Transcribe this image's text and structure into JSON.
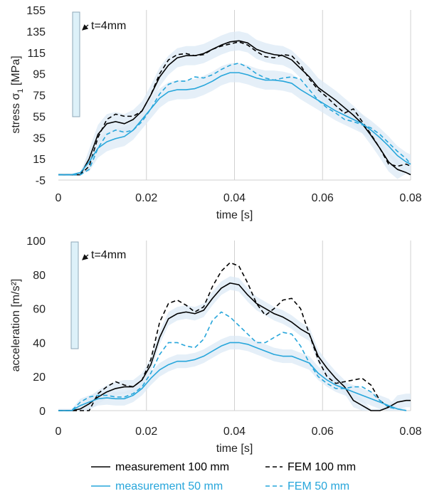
{
  "chart_data": [
    {
      "type": "line",
      "xlabel": "time [s]",
      "ylabel": "stress σ1 [MPa]",
      "ylabel_main": "stress σ",
      "ylabel_sub": "1",
      "ylabel_unit": " [MPa]",
      "xlim": [
        0,
        0.08
      ],
      "ylim": [
        -5,
        155
      ],
      "x_ticks": [
        "0",
        "0.02",
        "0.04",
        "0.06",
        "0.08"
      ],
      "y_ticks": [
        "-5",
        "15",
        "35",
        "55",
        "75",
        "95",
        "115",
        "135",
        "155"
      ],
      "grid": "vertical",
      "annotation": "t=4mm",
      "series": [
        {
          "name": "measurement 100 mm",
          "color": "#000000",
          "dash": "solid",
          "x": [
            0,
            0.005,
            0.007,
            0.009,
            0.011,
            0.013,
            0.015,
            0.017,
            0.019,
            0.021,
            0.023,
            0.025,
            0.027,
            0.029,
            0.031,
            0.033,
            0.035,
            0.037,
            0.039,
            0.041,
            0.043,
            0.045,
            0.047,
            0.049,
            0.051,
            0.053,
            0.055,
            0.057,
            0.059,
            0.061,
            0.063,
            0.065,
            0.067,
            0.069,
            0.071,
            0.073,
            0.075,
            0.077,
            0.079,
            0.08
          ],
          "y": [
            0,
            0,
            15,
            38,
            48,
            50,
            48,
            52,
            60,
            75,
            92,
            103,
            110,
            112,
            112,
            114,
            118,
            122,
            125,
            126,
            124,
            118,
            115,
            113,
            112,
            108,
            100,
            92,
            82,
            76,
            70,
            63,
            56,
            48,
            37,
            25,
            12,
            5,
            2,
            0
          ]
        },
        {
          "name": "FEM 100 mm",
          "color": "#000000",
          "dash": "dashed",
          "x": [
            0,
            0.005,
            0.007,
            0.009,
            0.011,
            0.013,
            0.015,
            0.017,
            0.019,
            0.021,
            0.023,
            0.025,
            0.027,
            0.029,
            0.031,
            0.033,
            0.035,
            0.037,
            0.039,
            0.041,
            0.043,
            0.045,
            0.047,
            0.049,
            0.051,
            0.053,
            0.055,
            0.057,
            0.059,
            0.061,
            0.063,
            0.065,
            0.067,
            0.069,
            0.071,
            0.073,
            0.075,
            0.077,
            0.079,
            0.08
          ],
          "y": [
            0,
            0,
            8,
            35,
            52,
            57,
            55,
            55,
            60,
            75,
            95,
            108,
            113,
            114,
            112,
            113,
            118,
            121,
            123,
            125,
            122,
            116,
            111,
            110,
            113,
            112,
            103,
            90,
            80,
            73,
            65,
            58,
            62,
            50,
            38,
            25,
            10,
            8,
            10,
            8
          ]
        },
        {
          "name": "measurement 50 mm",
          "color": "#27A6DB",
          "dash": "solid",
          "x": [
            0,
            0.003,
            0.005,
            0.007,
            0.009,
            0.011,
            0.013,
            0.015,
            0.017,
            0.019,
            0.021,
            0.023,
            0.025,
            0.027,
            0.029,
            0.031,
            0.033,
            0.035,
            0.037,
            0.039,
            0.041,
            0.043,
            0.045,
            0.047,
            0.049,
            0.051,
            0.053,
            0.055,
            0.057,
            0.059,
            0.061,
            0.063,
            0.065,
            0.067,
            0.069,
            0.071,
            0.073,
            0.075,
            0.077,
            0.079,
            0.08
          ],
          "y": [
            0,
            0,
            2,
            12,
            25,
            31,
            34,
            36,
            42,
            52,
            62,
            72,
            78,
            80,
            80,
            81,
            84,
            88,
            93,
            96,
            96,
            94,
            91,
            89,
            89,
            88,
            86,
            80,
            75,
            70,
            65,
            60,
            56,
            52,
            48,
            42,
            35,
            27,
            18,
            12,
            10
          ]
        },
        {
          "name": "FEM 50 mm",
          "color": "#27A6DB",
          "dash": "dashed",
          "x": [
            0,
            0.005,
            0.007,
            0.009,
            0.011,
            0.013,
            0.015,
            0.017,
            0.019,
            0.021,
            0.023,
            0.025,
            0.027,
            0.029,
            0.031,
            0.033,
            0.035,
            0.037,
            0.039,
            0.041,
            0.043,
            0.045,
            0.047,
            0.049,
            0.051,
            0.053,
            0.055,
            0.057,
            0.059,
            0.061,
            0.063,
            0.065,
            0.067,
            0.069,
            0.071,
            0.073,
            0.075,
            0.077,
            0.079,
            0.08
          ],
          "y": [
            0,
            0,
            5,
            25,
            38,
            42,
            40,
            42,
            50,
            62,
            76,
            85,
            88,
            88,
            92,
            91,
            94,
            99,
            103,
            105,
            101,
            95,
            91,
            89,
            91,
            92,
            90,
            80,
            70,
            63,
            58,
            52,
            50,
            47,
            44,
            38,
            30,
            22,
            15,
            10
          ]
        }
      ]
    },
    {
      "type": "line",
      "xlabel": "time [s]",
      "ylabel": "acceleration [m/s²]",
      "xlim": [
        0,
        0.08
      ],
      "ylim": [
        0,
        100
      ],
      "x_ticks": [
        "0",
        "0.02",
        "0.04",
        "0.06",
        "0.08"
      ],
      "y_ticks": [
        "0",
        "20",
        "40",
        "60",
        "80",
        "100"
      ],
      "grid": "vertical",
      "annotation": "t=4mm",
      "series": [
        {
          "name": "measurement 100 mm",
          "color": "#000000",
          "dash": "solid",
          "x": [
            0,
            0.003,
            0.005,
            0.007,
            0.009,
            0.011,
            0.013,
            0.015,
            0.017,
            0.019,
            0.021,
            0.023,
            0.025,
            0.027,
            0.029,
            0.031,
            0.033,
            0.035,
            0.037,
            0.039,
            0.041,
            0.043,
            0.045,
            0.047,
            0.049,
            0.051,
            0.053,
            0.055,
            0.057,
            0.059,
            0.061,
            0.063,
            0.065,
            0.067,
            0.069,
            0.071,
            0.073,
            0.075,
            0.077,
            0.079,
            0.08
          ],
          "y": [
            0,
            0,
            1,
            4,
            8,
            11,
            13,
            14,
            14,
            18,
            27,
            43,
            54,
            57,
            58,
            57,
            59,
            66,
            72,
            75,
            74,
            68,
            63,
            60,
            57,
            55,
            52,
            48,
            45,
            32,
            25,
            19,
            14,
            6,
            3,
            0,
            0,
            2,
            5,
            6,
            6
          ]
        },
        {
          "name": "FEM 100 mm",
          "color": "#000000",
          "dash": "dashed",
          "x": [
            0,
            0.003,
            0.005,
            0.007,
            0.009,
            0.011,
            0.013,
            0.015,
            0.017,
            0.019,
            0.021,
            0.023,
            0.025,
            0.027,
            0.029,
            0.031,
            0.033,
            0.035,
            0.037,
            0.039,
            0.041,
            0.043,
            0.045,
            0.047,
            0.049,
            0.051,
            0.053,
            0.055,
            0.057,
            0.059,
            0.061,
            0.063,
            0.065,
            0.067,
            0.069,
            0.071,
            0.073,
            0.075
          ],
          "y": [
            0,
            0,
            0,
            0,
            10,
            14,
            17,
            15,
            14,
            18,
            30,
            52,
            63,
            65,
            62,
            58,
            61,
            73,
            82,
            87,
            85,
            75,
            63,
            56,
            60,
            65,
            66,
            60,
            45,
            30,
            20,
            16,
            17,
            18,
            19,
            15,
            6,
            2
          ]
        },
        {
          "name": "measurement 50 mm",
          "color": "#27A6DB",
          "dash": "solid",
          "x": [
            0,
            0.003,
            0.005,
            0.007,
            0.009,
            0.011,
            0.013,
            0.015,
            0.017,
            0.019,
            0.021,
            0.023,
            0.025,
            0.027,
            0.029,
            0.031,
            0.033,
            0.035,
            0.037,
            0.039,
            0.041,
            0.043,
            0.045,
            0.047,
            0.049,
            0.051,
            0.053,
            0.055,
            0.057,
            0.059,
            0.061,
            0.063,
            0.065,
            0.067,
            0.069,
            0.071,
            0.073,
            0.075,
            0.077,
            0.079
          ],
          "y": [
            0,
            0,
            3,
            5,
            7,
            7.5,
            7,
            7,
            9,
            13,
            19,
            24,
            27,
            29,
            29,
            30,
            32,
            35,
            38,
            40,
            40,
            39,
            37,
            35,
            33,
            32,
            32,
            30,
            28,
            22,
            18,
            15,
            13,
            11,
            9,
            7,
            5,
            3,
            1,
            0
          ]
        },
        {
          "name": "FEM 50 mm",
          "color": "#27A6DB",
          "dash": "dashed",
          "x": [
            0,
            0.003,
            0.005,
            0.007,
            0.009,
            0.011,
            0.013,
            0.015,
            0.017,
            0.019,
            0.021,
            0.023,
            0.025,
            0.027,
            0.029,
            0.031,
            0.033,
            0.035,
            0.037,
            0.039,
            0.041,
            0.043,
            0.045,
            0.047,
            0.049,
            0.051,
            0.053,
            0.055,
            0.057,
            0.059,
            0.061,
            0.063,
            0.065,
            0.067,
            0.069,
            0.071,
            0.073,
            0.075,
            0.077,
            0.079
          ],
          "y": [
            0,
            0,
            5,
            8,
            9,
            9,
            8,
            8,
            10,
            14,
            22,
            33,
            40,
            40,
            38,
            37,
            42,
            53,
            58,
            55,
            50,
            45,
            40,
            40,
            43,
            46,
            45,
            38,
            28,
            20,
            16,
            13,
            13,
            14,
            14,
            11,
            6,
            2,
            1,
            0
          ]
        }
      ]
    }
  ],
  "legend": [
    {
      "label": "measurement 100 mm",
      "color": "#000000",
      "dash": "solid"
    },
    {
      "label": "FEM 100 mm",
      "color": "#000000",
      "dash": "dashed"
    },
    {
      "label": "measurement 50 mm",
      "color": "#27A6DB",
      "dash": "solid"
    },
    {
      "label": "FEM 50 mm",
      "color": "#27A6DB",
      "dash": "dashed"
    }
  ],
  "colors": {
    "black": "#000000",
    "blue": "#27A6DB",
    "band": "#DCEAF6",
    "grid": "#D0D0D0",
    "specimen": "#DDF1F9"
  }
}
